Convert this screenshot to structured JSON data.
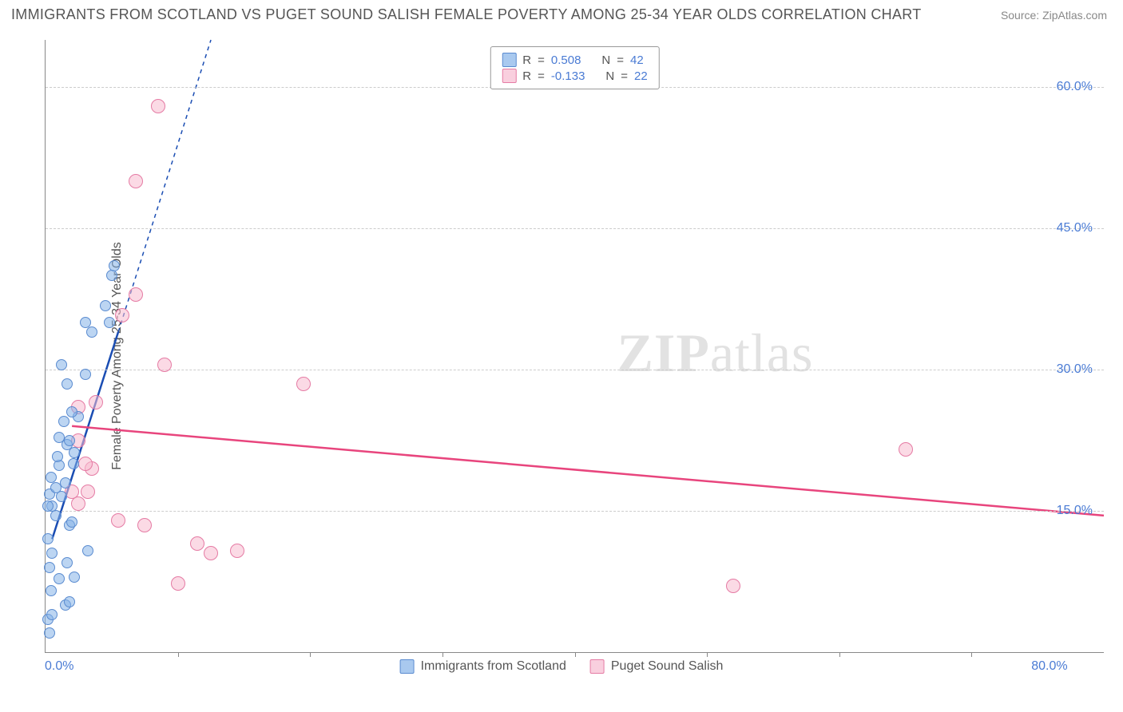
{
  "header": {
    "title": "IMMIGRANTS FROM SCOTLAND VS PUGET SOUND SALISH FEMALE POVERTY AMONG 25-34 YEAR OLDS CORRELATION CHART",
    "source": "Source: ZipAtlas.com"
  },
  "watermark": "ZIPatlas",
  "axes": {
    "y_label": "Female Poverty Among 25-34 Year Olds",
    "x_min": 0.0,
    "x_max": 80.0,
    "y_min": 0.0,
    "y_max": 65.0,
    "x_tick_left": "0.0%",
    "x_tick_right": "80.0%",
    "y_ticks": [
      {
        "value": 15.0,
        "label": "15.0%"
      },
      {
        "value": 30.0,
        "label": "30.0%"
      },
      {
        "value": 45.0,
        "label": "45.0%"
      },
      {
        "value": 60.0,
        "label": "60.0%"
      }
    ],
    "x_grid_values": [
      10,
      20,
      30,
      40,
      50,
      60,
      70
    ],
    "grid_color": "#cccccc",
    "axis_color": "#888888",
    "tick_label_color": "#4a7bd4"
  },
  "series": {
    "blue": {
      "name": "Immigrants from Scotland",
      "color_fill": "rgba(133,178,232,0.55)",
      "color_stroke": "#5a8bd0",
      "marker_size": 14,
      "R": "0.508",
      "N": "42",
      "points": [
        [
          0.3,
          2.0
        ],
        [
          0.2,
          3.5
        ],
        [
          0.5,
          4.0
        ],
        [
          1.5,
          5.0
        ],
        [
          1.8,
          5.3
        ],
        [
          0.4,
          6.5
        ],
        [
          1.0,
          7.8
        ],
        [
          2.2,
          8.0
        ],
        [
          0.3,
          9.0
        ],
        [
          1.6,
          9.5
        ],
        [
          0.5,
          10.5
        ],
        [
          3.2,
          10.8
        ],
        [
          0.2,
          12.0
        ],
        [
          1.8,
          13.5
        ],
        [
          2.0,
          13.8
        ],
        [
          0.8,
          14.5
        ],
        [
          0.5,
          15.5
        ],
        [
          0.2,
          15.5
        ],
        [
          1.2,
          16.5
        ],
        [
          0.3,
          16.8
        ],
        [
          0.8,
          17.5
        ],
        [
          1.5,
          18.0
        ],
        [
          0.4,
          18.6
        ],
        [
          1.0,
          19.8
        ],
        [
          2.1,
          20.0
        ],
        [
          0.9,
          20.8
        ],
        [
          2.2,
          21.2
        ],
        [
          1.6,
          22.0
        ],
        [
          1.8,
          22.5
        ],
        [
          1.0,
          22.8
        ],
        [
          1.4,
          24.5
        ],
        [
          2.5,
          25.0
        ],
        [
          2.0,
          25.5
        ],
        [
          1.6,
          28.5
        ],
        [
          3.0,
          29.5
        ],
        [
          1.2,
          30.5
        ],
        [
          3.5,
          34.0
        ],
        [
          3.0,
          35.0
        ],
        [
          4.8,
          35.0
        ],
        [
          4.5,
          36.8
        ],
        [
          5.0,
          40.0
        ],
        [
          5.2,
          41.0
        ]
      ],
      "trend": {
        "solid": {
          "x1": 0.5,
          "y1": 12.0,
          "x2": 5.5,
          "y2": 34.0
        },
        "dash": {
          "x1": 5.5,
          "y1": 34.0,
          "x2": 12.5,
          "y2": 65.0
        },
        "color": "#1a4db3",
        "width": 2.5
      }
    },
    "pink": {
      "name": "Puget Sound Salish",
      "color_fill": "rgba(247,187,208,0.55)",
      "color_stroke": "#e57ba4",
      "marker_size": 18,
      "R": "-0.133",
      "N": "22",
      "points": [
        [
          52.0,
          7.0
        ],
        [
          10.0,
          7.3
        ],
        [
          12.5,
          10.5
        ],
        [
          14.5,
          10.8
        ],
        [
          11.5,
          11.5
        ],
        [
          7.5,
          13.5
        ],
        [
          5.5,
          14.0
        ],
        [
          2.5,
          15.8
        ],
        [
          3.2,
          17.0
        ],
        [
          2.0,
          17.0
        ],
        [
          3.5,
          19.5
        ],
        [
          65.0,
          21.5
        ],
        [
          2.5,
          22.5
        ],
        [
          2.5,
          26.0
        ],
        [
          3.8,
          26.5
        ],
        [
          19.5,
          28.5
        ],
        [
          9.0,
          30.5
        ],
        [
          5.8,
          35.8
        ],
        [
          6.8,
          38.0
        ],
        [
          6.8,
          50.0
        ],
        [
          8.5,
          58.0
        ],
        [
          3.0,
          20.0
        ]
      ],
      "trend": {
        "solid": {
          "x1": 2.0,
          "y1": 24.0,
          "x2": 80.0,
          "y2": 14.5
        },
        "color": "#e8457d",
        "width": 2.5
      }
    }
  },
  "legend_top": {
    "rows": [
      {
        "swatch": "blue",
        "r_label": "R",
        "r_val": "0.508",
        "n_label": "N",
        "n_val": "42"
      },
      {
        "swatch": "pink",
        "r_label": "R",
        "r_val": "-0.133",
        "n_label": "N",
        "n_val": "22"
      }
    ]
  },
  "legend_bottom": {
    "items": [
      {
        "swatch": "blue",
        "label": "Immigrants from Scotland"
      },
      {
        "swatch": "pink",
        "label": "Puget Sound Salish"
      }
    ]
  }
}
